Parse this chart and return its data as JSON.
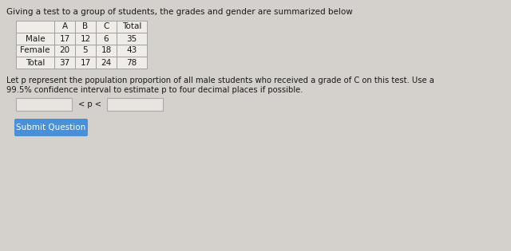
{
  "title": "Giving a test to a group of students, the grades and gender are summarized below",
  "table_headers": [
    "",
    "A",
    "B",
    "C",
    "Total"
  ],
  "table_rows": [
    [
      "Male",
      "17",
      "12",
      "6",
      "35"
    ],
    [
      "Female",
      "20",
      "5",
      "18",
      "43"
    ],
    [
      "Total",
      "37",
      "17",
      "24",
      "78"
    ]
  ],
  "paragraph1": "Let p represent the population proportion of all male students who received a grade of C on this test. Use a",
  "paragraph2": "99.5% confidence interval to estimate p to four decimal places if possible.",
  "input_label": "< p <",
  "button_text": "Submit Question",
  "bg_color": "#d4d0cb",
  "table_bg": "#f0ede8",
  "button_color": "#4a90d9",
  "button_text_color": "#ffffff",
  "input_box_color": "#e8e5e0",
  "text_color": "#1a1a1a",
  "font_size_title": 7.5,
  "font_size_table": 7.5,
  "font_size_para": 7.2,
  "font_size_button": 7.5
}
